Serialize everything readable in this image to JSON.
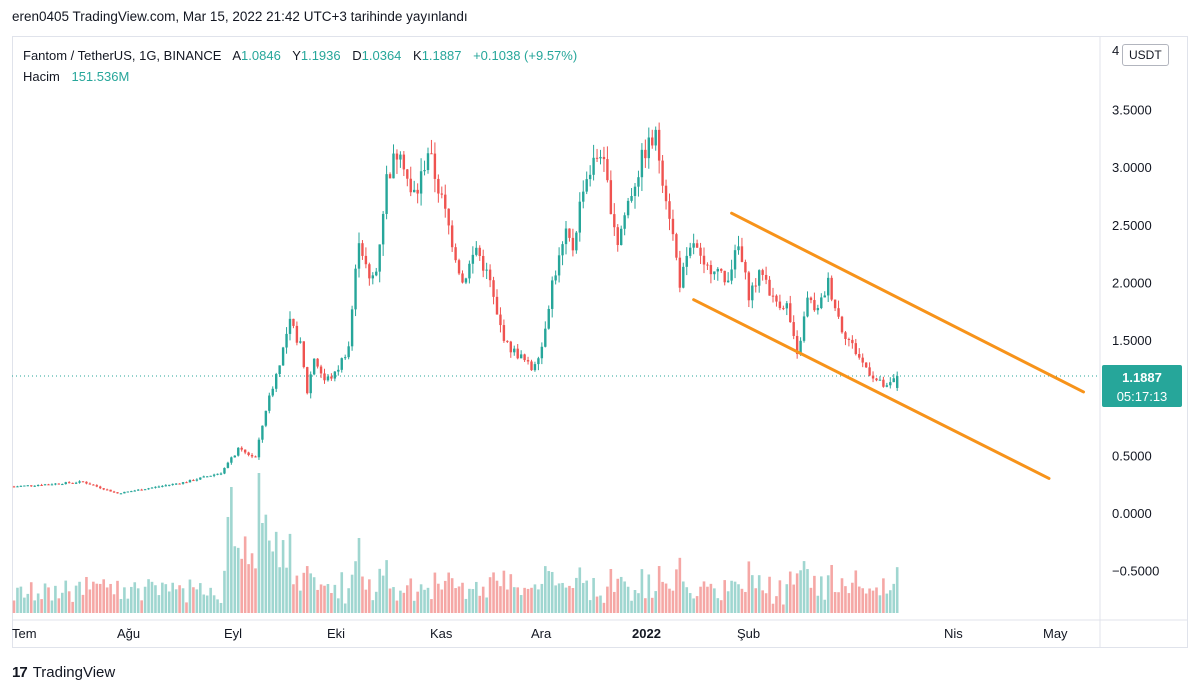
{
  "caption": "eren0405 TradingView.com, Mar 15, 2022 21:42 UTC+3 tarihinde yayınlandı",
  "legend": {
    "symbol": "Fantom / TetherUS, 1G, BINANCE",
    "open_label": "A",
    "open": "1.0846",
    "high_label": "Y",
    "high": "1.1936",
    "low_label": "D",
    "low": "1.0364",
    "close_label": "K",
    "close": "1.1887",
    "change": "+0.1038 (+9.57%)",
    "volume_label": "Hacim",
    "volume": "151.536M"
  },
  "currency": "USDT",
  "last_price": {
    "price": "1.1887",
    "countdown": "05:17:13"
  },
  "brand": {
    "logo": "17",
    "name": "TradingView"
  },
  "colors": {
    "up": "#26a69a",
    "down": "#ef5350",
    "vol_up": "#9fd6d0",
    "vol_down": "#f5a7a5",
    "channel": "#f7931a",
    "last_line": "#26a69a"
  },
  "chart_data": {
    "type": "candlestick",
    "title": "Fantom / TetherUS, 1G, BINANCE",
    "y_axis": {
      "ticks": [
        "4",
        "3.5000",
        "3.0000",
        "2.5000",
        "2.0000",
        "1.5000",
        "0.5000",
        "0.0000",
        "−0.5000"
      ],
      "range": [
        -0.8,
        4.1
      ]
    },
    "x_axis": {
      "labels": [
        "Tem",
        "Ağu",
        "Eyl",
        "Eki",
        "Kas",
        "Ara",
        "2022",
        "Şub",
        "Nis",
        "May"
      ]
    },
    "last_close": 1.1887,
    "price_path_days": [
      0,
      20,
      30,
      50,
      60,
      65,
      70,
      73,
      76,
      80,
      83,
      85,
      87,
      90,
      93,
      97,
      100,
      103,
      105,
      108,
      112,
      115,
      117,
      120,
      125,
      130,
      134,
      138,
      140,
      143,
      147,
      150,
      153,
      156,
      160,
      162,
      165,
      170,
      175,
      178,
      183,
      186,
      190,
      193,
      197,
      200,
      203,
      206,
      210,
      213,
      217,
      220,
      224,
      227,
      230,
      233,
      236,
      240,
      243,
      246,
      250,
      253,
      256
    ],
    "price_path_close": [
      0.23,
      0.27,
      0.17,
      0.27,
      0.35,
      0.55,
      0.48,
      0.9,
      1.2,
      1.65,
      1.45,
      1.05,
      1.35,
      1.15,
      1.2,
      1.45,
      2.4,
      2.0,
      2.1,
      2.9,
      3.2,
      2.75,
      2.8,
      3.15,
      2.6,
      2.0,
      2.3,
      2.0,
      1.7,
      1.45,
      1.35,
      1.25,
      1.45,
      2.0,
      2.4,
      2.3,
      2.85,
      3.15,
      2.35,
      2.7,
      3.15,
      3.25,
      2.6,
      2.0,
      2.35,
      2.1,
      2.15,
      2.0,
      2.3,
      1.9,
      2.1,
      1.85,
      1.8,
      1.35,
      1.85,
      1.75,
      2.0,
      1.6,
      1.45,
      1.3,
      1.15,
      1.08,
      1.19
    ],
    "channel_upper": [
      {
        "day": 208,
        "price": 2.6
      },
      {
        "day": 310,
        "price": 1.05
      }
    ],
    "channel_lower": [
      {
        "day": 197,
        "price": 1.85
      },
      {
        "day": 300,
        "price": 0.3
      }
    ]
  }
}
